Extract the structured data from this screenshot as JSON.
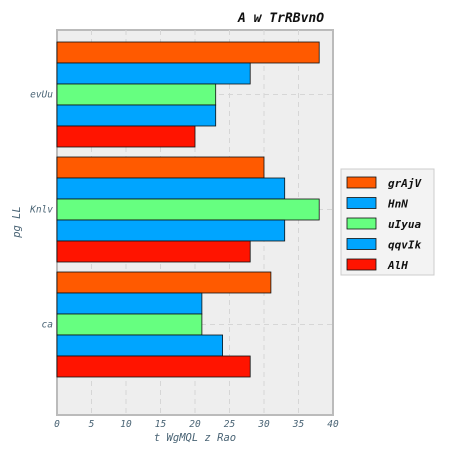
{
  "chart_data": {
    "type": "bar",
    "orientation": "horizontal",
    "title": "A  w TrRBvnO",
    "xlabel": "t WgMQL z Rao",
    "ylabel": "pg LL",
    "categories": [
      "evUu",
      "Knlv",
      "ca"
    ],
    "xlim": [
      0,
      40
    ],
    "xticks": [
      0,
      5,
      10,
      15,
      20,
      25,
      30,
      35,
      40
    ],
    "grid": true,
    "legend_position": "right",
    "series": [
      {
        "name": "grAjV",
        "color": "#ff5a00",
        "values": [
          38,
          30,
          31
        ]
      },
      {
        "name": "HnN",
        "color": "#00a5ff",
        "values": [
          28,
          33,
          21
        ]
      },
      {
        "name": "uIyua",
        "color": "#66ff80",
        "values": [
          23,
          38,
          21
        ]
      },
      {
        "name": "qqvIk",
        "color": "#00a5ff",
        "values": [
          23,
          33,
          24
        ]
      },
      {
        "name": "AlH",
        "color": "#ff1400",
        "values": [
          20,
          28,
          28
        ]
      }
    ]
  }
}
